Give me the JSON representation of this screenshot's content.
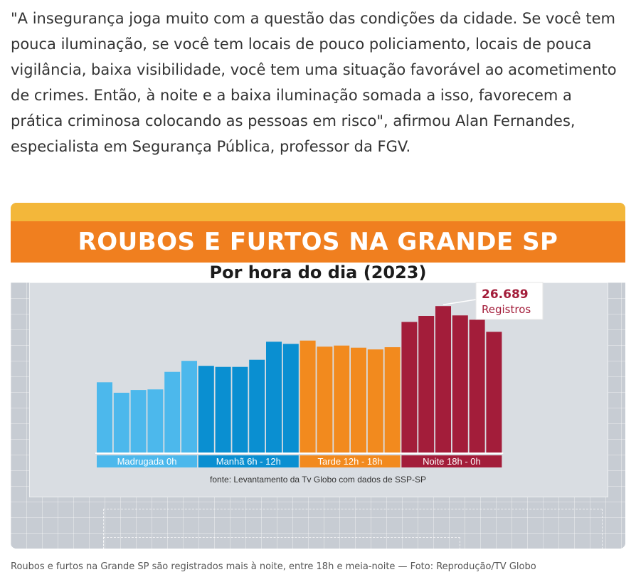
{
  "article": {
    "quote": "\"A insegurança joga muito com a questão das condições da cidade. Se você tem pouca iluminação, se você tem locais de pouco policiamento, locais de pouca vigilância, baixa visibilidade, você tem uma situação favorável ao acometimento de crimes. Então, à noite e a baixa iluminação somada a isso, favorecem a prática criminosa colocando as pessoas em risco\", afirmou Alan Fernandes, especialista em Segurança Pública, professor da FGV.",
    "caption": "Roubos e furtos na Grande SP são registrados mais à noite, entre 18h e meia-noite — Foto: Reprodução/TV Globo"
  },
  "colors": {
    "madrugada": "#4cb8ec",
    "manha": "#0a8fd1",
    "tarde": "#f28a1e",
    "noite": "#a31d3a",
    "band_top": "#f3b73a",
    "band_title": "#f07f1f"
  },
  "chart_data": {
    "type": "bar",
    "title": "ROUBOS E FURTOS NA GRANDE SP",
    "subtitle": "Por hora do dia (2023)",
    "ylim": [
      0,
      31000
    ],
    "grid": false,
    "hours": [
      0,
      1,
      2,
      3,
      4,
      5,
      6,
      7,
      8,
      9,
      10,
      11,
      12,
      13,
      14,
      15,
      16,
      17,
      18,
      19,
      20,
      21,
      22,
      23
    ],
    "values": [
      12800,
      10900,
      11400,
      11500,
      14700,
      16700,
      15800,
      15600,
      15600,
      16900,
      20200,
      19800,
      20400,
      19300,
      19500,
      19100,
      18800,
      19200,
      23800,
      24900,
      26689,
      25000,
      24200,
      22000
    ],
    "periods": [
      {
        "label": "Madrugada 0h",
        "color_key": "madrugada",
        "start": 0,
        "end": 5
      },
      {
        "label": "Manhã 6h - 12h",
        "color_key": "manha",
        "start": 6,
        "end": 11
      },
      {
        "label": "Tarde 12h - 18h",
        "color_key": "tarde",
        "start": 12,
        "end": 17
      },
      {
        "label": "Noite 18h - 0h",
        "color_key": "noite",
        "start": 18,
        "end": 23
      }
    ],
    "annotation": {
      "value_text": "26.689",
      "unit_text": "Registros",
      "index": 20
    },
    "source": "fonte: Levantamento da Tv Globo com dados de SSP-SP"
  }
}
